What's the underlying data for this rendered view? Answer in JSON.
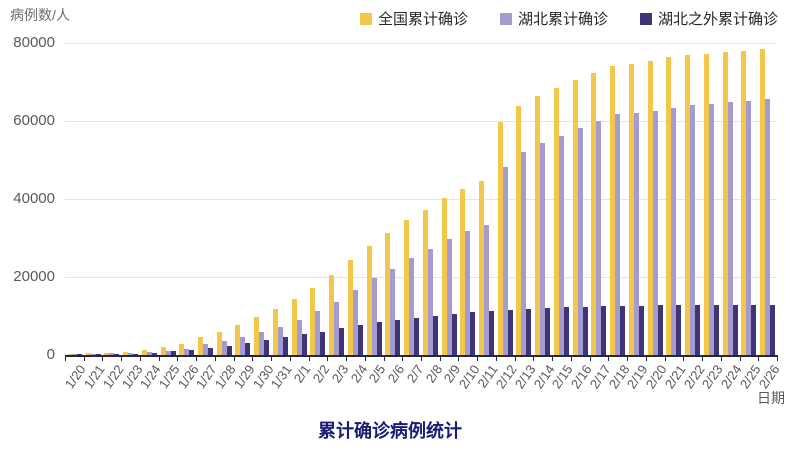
{
  "title": "累计确诊病例统计",
  "axes": {
    "y_title": "病例数/人",
    "x_title": "日期"
  },
  "legend": [
    {
      "label": "全国累计确诊",
      "color": "#F2C74C"
    },
    {
      "label": "湖北累计确诊",
      "color": "#A49CD0"
    },
    {
      "label": "湖北之外累计确诊",
      "color": "#3E3577"
    }
  ],
  "colors": {
    "axis": "#26263c",
    "gridline": "#e4e4e4",
    "tick_label": "#595959",
    "title": "#1b1a75"
  },
  "chart_data": {
    "type": "bar",
    "title": "累计确诊病例统计",
    "xlabel": "日期",
    "ylabel": "病例数/人",
    "ylim": [
      0,
      80000
    ],
    "yticks": [
      0,
      20000,
      40000,
      60000,
      80000
    ],
    "grid": true,
    "legend_position": "top",
    "categories": [
      "1/20",
      "1/21",
      "1/22",
      "1/23",
      "1/24",
      "1/25",
      "1/26",
      "1/27",
      "1/28",
      "1/29",
      "1/30",
      "1/31",
      "2/1",
      "2/2",
      "2/3",
      "2/4",
      "2/5",
      "2/6",
      "2/7",
      "2/8",
      "2/9",
      "2/10",
      "2/11",
      "2/12",
      "2/13",
      "2/14",
      "2/15",
      "2/16",
      "2/17",
      "2/18",
      "2/19",
      "2/20",
      "2/21",
      "2/22",
      "2/23",
      "2/24",
      "2/25",
      "2/26"
    ],
    "series": [
      {
        "name": "全国累计确诊",
        "color": "#F2C74C",
        "values": [
          291,
          440,
          571,
          830,
          1287,
          1975,
          2744,
          4515,
          5974,
          7711,
          9692,
          11791,
          14380,
          17205,
          20438,
          24324,
          28018,
          31161,
          34546,
          37198,
          40171,
          42638,
          44653,
          59804,
          63851,
          66492,
          68500,
          70548,
          72436,
          74185,
          74576,
          75465,
          76288,
          76936,
          77150,
          77658,
          78064,
          78497
        ]
      },
      {
        "name": "湖北累计确诊",
        "color": "#A49CD0",
        "values": [
          270,
          375,
          444,
          549,
          729,
          1052,
          1423,
          2714,
          3554,
          4586,
          5806,
          7153,
          9074,
          11177,
          13522,
          16678,
          19665,
          22112,
          24953,
          27100,
          29631,
          31728,
          33366,
          48206,
          51986,
          54406,
          56249,
          58182,
          59989,
          61682,
          62031,
          62662,
          63454,
          64084,
          64287,
          64786,
          65187,
          65596
        ]
      },
      {
        "name": "湖北之外累计确诊",
        "color": "#3E3577",
        "values": [
          21,
          65,
          127,
          281,
          558,
          923,
          1321,
          1801,
          2420,
          3125,
          3886,
          4638,
          5306,
          6028,
          6916,
          7646,
          8353,
          9049,
          9593,
          10098,
          10540,
          10910,
          11287,
          11598,
          11865,
          12086,
          12251,
          12366,
          12447,
          12503,
          12545,
          12803,
          12834,
          12852,
          12863,
          12872,
          12877,
          12901
        ]
      }
    ]
  }
}
